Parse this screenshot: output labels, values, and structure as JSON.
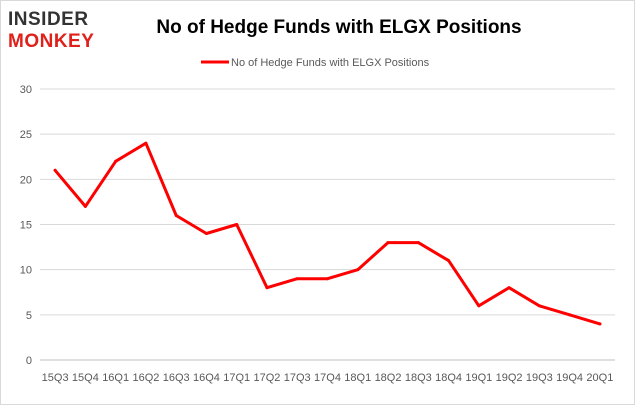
{
  "logo": {
    "line1": "INSIDER",
    "line2": "MONKEY"
  },
  "colors": {
    "series": "#ff0000",
    "logo_dark": "#333333",
    "logo_accent": "#e0201b",
    "grid": "#d9d9d9",
    "axis_text": "#595959",
    "title": "#000000"
  },
  "chart_data": {
    "type": "line",
    "title": "No of Hedge Funds with ELGX Positions",
    "xlabel": "",
    "ylabel": "",
    "ylim": [
      0,
      30
    ],
    "yticks": [
      0,
      5,
      10,
      15,
      20,
      25,
      30
    ],
    "grid": true,
    "legend_position": "top",
    "categories": [
      "15Q3",
      "15Q4",
      "16Q1",
      "16Q2",
      "16Q3",
      "16Q4",
      "17Q1",
      "17Q2",
      "17Q3",
      "17Q4",
      "18Q1",
      "18Q2",
      "18Q3",
      "18Q4",
      "19Q1",
      "19Q2",
      "19Q3",
      "19Q4",
      "20Q1"
    ],
    "series": [
      {
        "name": "No of Hedge Funds with ELGX Positions",
        "values": [
          21,
          17,
          22,
          24,
          16,
          14,
          15,
          8,
          9,
          9,
          10,
          13,
          13,
          11,
          6,
          8,
          6,
          5,
          4
        ]
      }
    ]
  }
}
